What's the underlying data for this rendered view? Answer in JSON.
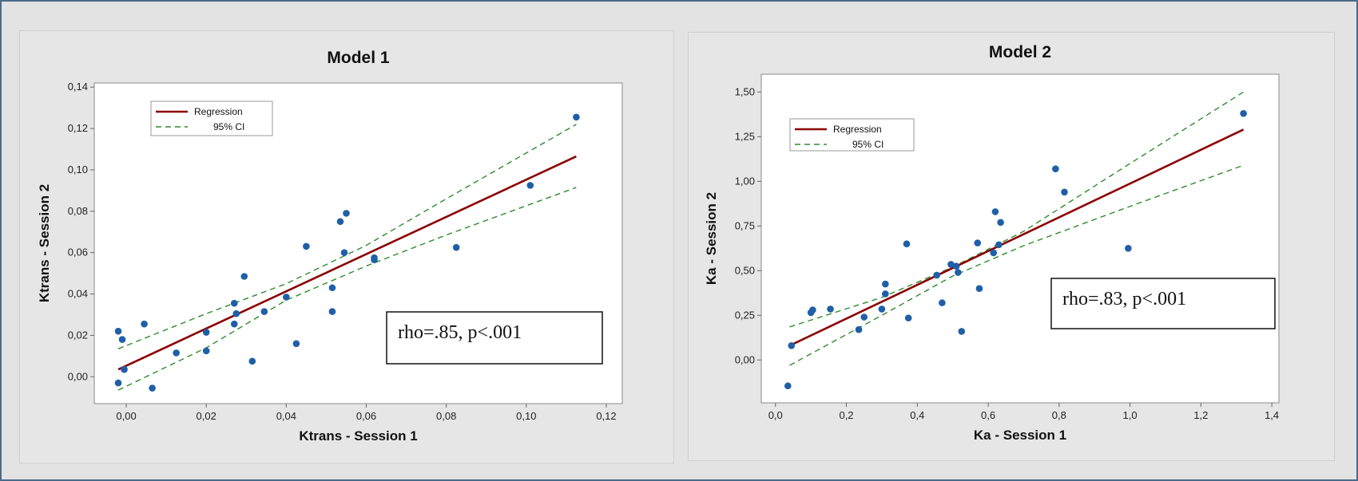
{
  "colors": {
    "regression": "#8b0000",
    "ci": "#2e8b2e",
    "points": "#1f5fa8",
    "plot_background": "#ffffff",
    "panel_background": "#e6e6e6"
  },
  "chart_data": [
    {
      "type": "scatter",
      "title": "Model 1",
      "xlabel": "Ktrans - Session 1",
      "ylabel": "Ktrans - Session 2",
      "xlim": [
        -0.008,
        0.124
      ],
      "ylim": [
        -0.013,
        0.142
      ],
      "xticks": [
        0.0,
        0.02,
        0.04,
        0.06,
        0.08,
        0.1,
        0.12
      ],
      "xtick_labels": [
        "0,00",
        "0,02",
        "0,04",
        "0,06",
        "0,08",
        "0,10",
        "0,12"
      ],
      "yticks": [
        0.0,
        0.02,
        0.04,
        0.06,
        0.08,
        0.1,
        0.12,
        0.14
      ],
      "ytick_labels": [
        "0,00",
        "0,02",
        "0,04",
        "0,06",
        "0,08",
        "0,10",
        "0,12",
        "0,14"
      ],
      "legend": {
        "placement": "top-left",
        "entries": [
          "Regression",
          "95% CI"
        ]
      },
      "annotation": "rho=.85, p<.001",
      "regression_line": {
        "x": [
          -0.002,
          0.1125
        ],
        "y": [
          0.0035,
          0.1065
        ]
      },
      "ci_upper": {
        "x": [
          -0.002,
          0.02,
          0.04,
          0.06,
          0.08,
          0.1125
        ],
        "y": [
          0.0135,
          0.0305,
          0.045,
          0.0635,
          0.086,
          0.122
        ]
      },
      "ci_lower": {
        "x": [
          -0.002,
          0.02,
          0.04,
          0.06,
          0.08,
          0.1125
        ],
        "y": [
          -0.0065,
          0.014,
          0.037,
          0.0535,
          0.0685,
          0.0915
        ]
      },
      "points": [
        {
          "x": -0.002,
          "y": 0.022
        },
        {
          "x": -0.001,
          "y": 0.018
        },
        {
          "x": -0.002,
          "y": -0.003
        },
        {
          "x": -0.0005,
          "y": 0.0035
        },
        {
          "x": 0.0045,
          "y": 0.0255
        },
        {
          "x": 0.0065,
          "y": -0.0055
        },
        {
          "x": 0.0125,
          "y": 0.0115
        },
        {
          "x": 0.02,
          "y": 0.0215
        },
        {
          "x": 0.02,
          "y": 0.0125
        },
        {
          "x": 0.027,
          "y": 0.0355
        },
        {
          "x": 0.0275,
          "y": 0.0305
        },
        {
          "x": 0.027,
          "y": 0.0255
        },
        {
          "x": 0.0295,
          "y": 0.0485
        },
        {
          "x": 0.0315,
          "y": 0.0075
        },
        {
          "x": 0.0345,
          "y": 0.0315
        },
        {
          "x": 0.04,
          "y": 0.0385
        },
        {
          "x": 0.0425,
          "y": 0.016
        },
        {
          "x": 0.045,
          "y": 0.063
        },
        {
          "x": 0.0515,
          "y": 0.043
        },
        {
          "x": 0.0515,
          "y": 0.0315
        },
        {
          "x": 0.0535,
          "y": 0.075
        },
        {
          "x": 0.055,
          "y": 0.079
        },
        {
          "x": 0.0545,
          "y": 0.06
        },
        {
          "x": 0.062,
          "y": 0.0575
        },
        {
          "x": 0.062,
          "y": 0.0565
        },
        {
          "x": 0.0825,
          "y": 0.0625
        },
        {
          "x": 0.101,
          "y": 0.0925
        },
        {
          "x": 0.1125,
          "y": 0.1255
        }
      ]
    },
    {
      "type": "scatter",
      "title": "Model 2",
      "xlabel": "Ka - Session 1",
      "ylabel": "Ka - Session 2",
      "xlim": [
        -0.04,
        1.42
      ],
      "ylim": [
        -0.24,
        1.6
      ],
      "xticks": [
        0.0,
        0.2,
        0.4,
        0.6,
        0.8,
        1.0,
        1.2,
        1.4
      ],
      "xtick_labels": [
        "0,0",
        "0,2",
        "0,4",
        "0,6",
        "0,8",
        "1,0",
        "1,2",
        "1,4"
      ],
      "yticks": [
        0.0,
        0.25,
        0.5,
        0.75,
        1.0,
        1.25,
        1.5
      ],
      "ytick_labels": [
        "0,00",
        "0,25",
        "0,50",
        "0,75",
        "1,00",
        "1,25",
        "1,50"
      ],
      "legend": {
        "placement": "top-left",
        "entries": [
          "Regression",
          "95% CI"
        ]
      },
      "annotation": "rho=.83, p<.001",
      "regression_line": {
        "x": [
          0.04,
          1.32
        ],
        "y": [
          0.08,
          1.29
        ]
      },
      "ci_upper": {
        "x": [
          0.04,
          0.3,
          0.5,
          0.7,
          1.0,
          1.32
        ],
        "y": [
          0.185,
          0.35,
          0.52,
          0.72,
          1.1,
          1.5
        ]
      },
      "ci_lower": {
        "x": [
          0.04,
          0.3,
          0.5,
          0.7,
          1.0,
          1.32
        ],
        "y": [
          -0.03,
          0.25,
          0.47,
          0.64,
          0.86,
          1.09
        ]
      },
      "points": [
        {
          "x": 0.035,
          "y": -0.145
        },
        {
          "x": 0.045,
          "y": 0.08
        },
        {
          "x": 0.1,
          "y": 0.265
        },
        {
          "x": 0.105,
          "y": 0.28
        },
        {
          "x": 0.155,
          "y": 0.285
        },
        {
          "x": 0.235,
          "y": 0.17
        },
        {
          "x": 0.25,
          "y": 0.24
        },
        {
          "x": 0.3,
          "y": 0.285
        },
        {
          "x": 0.31,
          "y": 0.37
        },
        {
          "x": 0.31,
          "y": 0.425
        },
        {
          "x": 0.37,
          "y": 0.65
        },
        {
          "x": 0.375,
          "y": 0.235
        },
        {
          "x": 0.455,
          "y": 0.475
        },
        {
          "x": 0.47,
          "y": 0.32
        },
        {
          "x": 0.495,
          "y": 0.535
        },
        {
          "x": 0.51,
          "y": 0.525
        },
        {
          "x": 0.515,
          "y": 0.49
        },
        {
          "x": 0.525,
          "y": 0.16
        },
        {
          "x": 0.57,
          "y": 0.655
        },
        {
          "x": 0.575,
          "y": 0.4
        },
        {
          "x": 0.615,
          "y": 0.6
        },
        {
          "x": 0.62,
          "y": 0.83
        },
        {
          "x": 0.63,
          "y": 0.645
        },
        {
          "x": 0.635,
          "y": 0.77
        },
        {
          "x": 0.79,
          "y": 1.07
        },
        {
          "x": 0.815,
          "y": 0.94
        },
        {
          "x": 0.995,
          "y": 0.625
        },
        {
          "x": 1.32,
          "y": 1.38
        }
      ]
    }
  ]
}
